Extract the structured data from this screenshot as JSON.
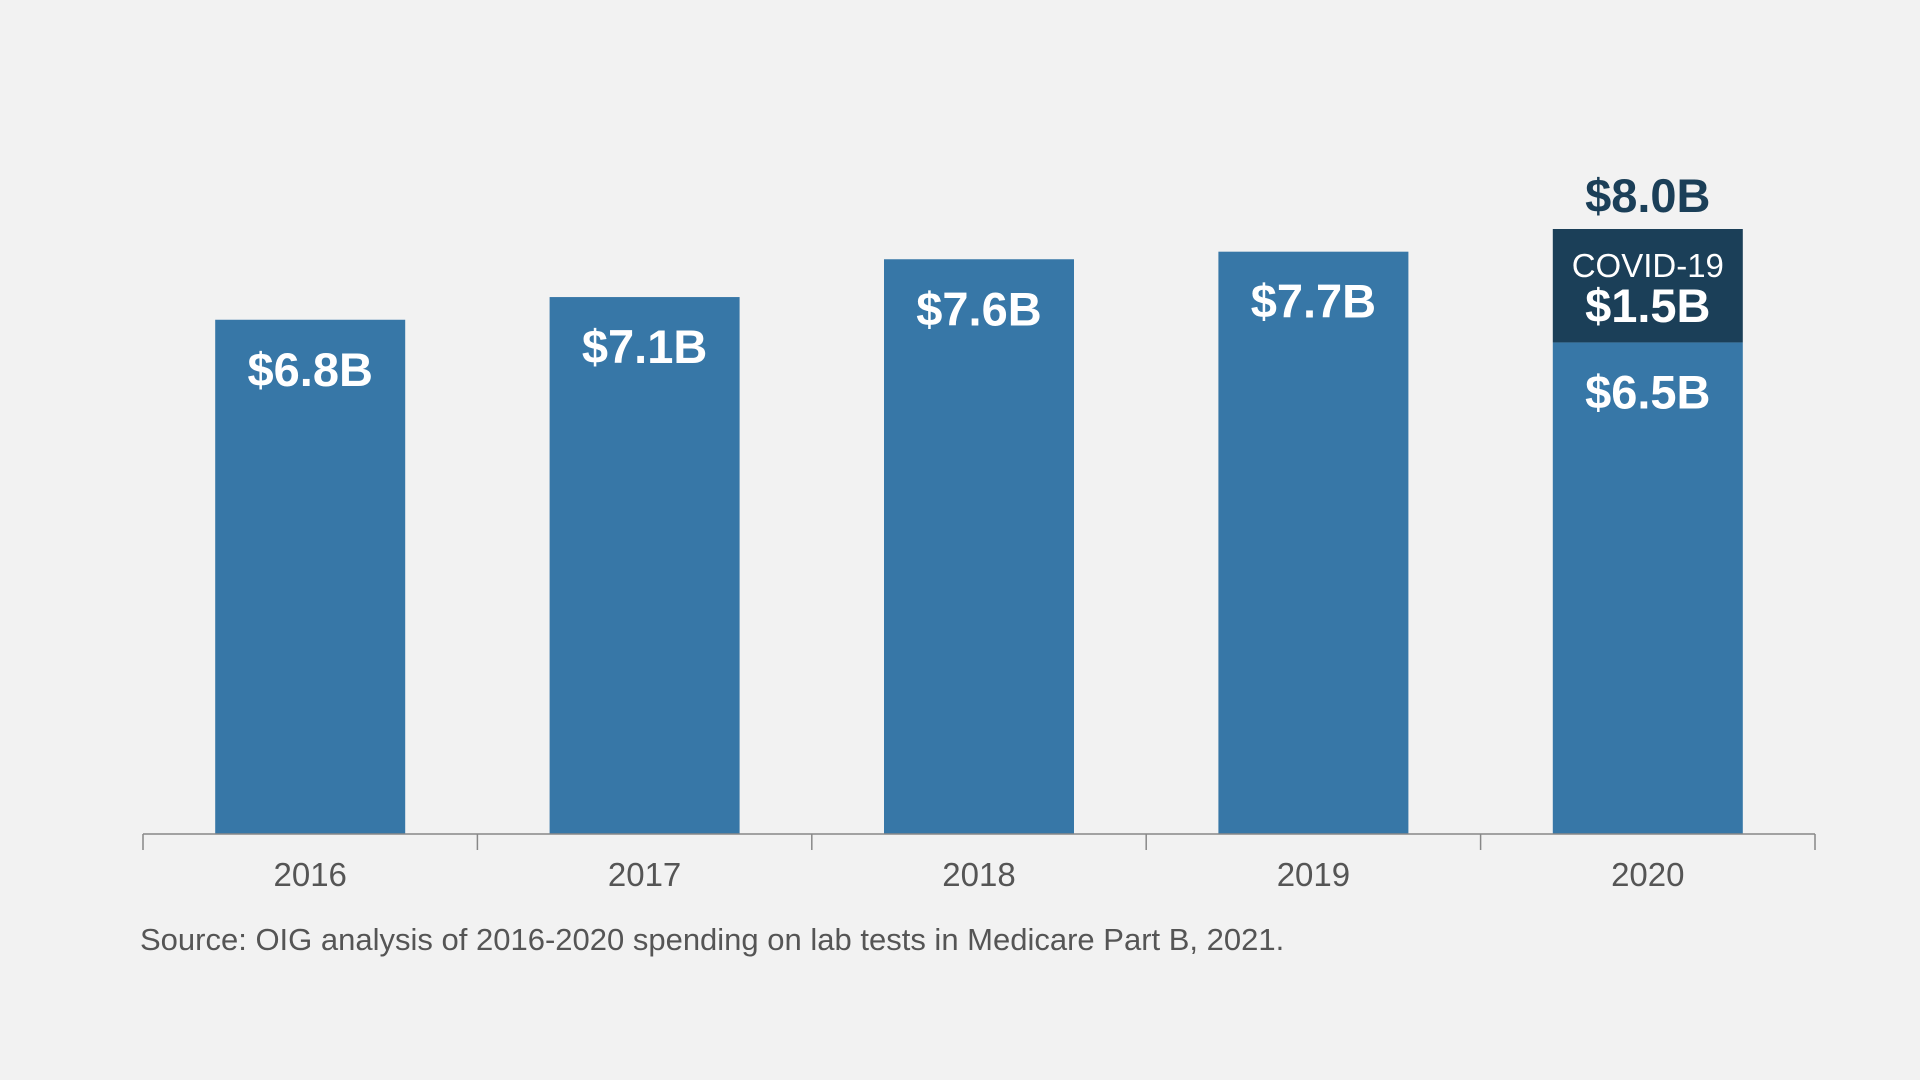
{
  "chart_data": {
    "type": "bar",
    "categories": [
      "2016",
      "2017",
      "2018",
      "2019",
      "2020"
    ],
    "series": [
      {
        "values": [
          6.8,
          7.1,
          7.6,
          7.7,
          6.5
        ],
        "color": "#3777a7"
      },
      {
        "name": "COVID-19",
        "values": [
          0,
          0,
          0,
          0,
          1.5
        ],
        "color": "#1b3f58"
      }
    ],
    "data_labels": [
      "$6.8B",
      "$7.1B",
      "$7.6B",
      "$7.7B",
      "$6.5B"
    ],
    "stack_labels": {
      "2020": {
        "name": "COVID-19",
        "value": "$1.5B"
      }
    },
    "totals": {
      "2020": "$8.0B"
    },
    "unit": "billions of dollars",
    "ylim": [
      0,
      8.0
    ],
    "grid": false,
    "legend": "none",
    "source": "Source: OIG analysis of 2016-2020 spending on lab tests in Medicare Part B, 2021."
  }
}
